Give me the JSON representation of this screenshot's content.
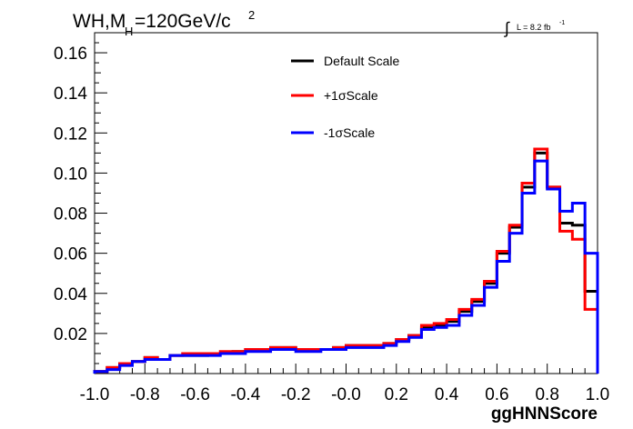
{
  "chart_data": {
    "type": "step",
    "title": {
      "main": "WH,M",
      "sub": "H",
      "tail": "=120GeV/c",
      "sup": "2"
    },
    "lumi": {
      "integral": "∫",
      "text": "L = 8.2 fb",
      "sup": "-1"
    },
    "xlabel": "ggHNNScore",
    "ylabel": "",
    "xlim": [
      -1.0,
      1.0
    ],
    "ylim": [
      0.0,
      0.17
    ],
    "x_ticks": [
      "-1.0",
      "-0.8",
      "-0.6",
      "-0.4",
      "-0.2",
      "-0.0",
      "0.2",
      "0.4",
      "0.6",
      "0.8",
      "1.0"
    ],
    "y_ticks": [
      "0.02",
      "0.04",
      "0.06",
      "0.08",
      "0.10",
      "0.12",
      "0.14",
      "0.16"
    ],
    "bin_edges_start": -1.0,
    "bin_width": 0.05,
    "series": [
      {
        "name": "Default Scale",
        "color": "#000000",
        "values": [
          0.001,
          0.003,
          0.005,
          0.006,
          0.008,
          0.007,
          0.009,
          0.009,
          0.009,
          0.01,
          0.01,
          0.011,
          0.012,
          0.012,
          0.013,
          0.013,
          0.012,
          0.012,
          0.012,
          0.013,
          0.014,
          0.014,
          0.014,
          0.015,
          0.017,
          0.019,
          0.023,
          0.024,
          0.026,
          0.031,
          0.036,
          0.045,
          0.06,
          0.073,
          0.093,
          0.11,
          0.093,
          0.075,
          0.074,
          0.041
        ]
      },
      {
        "name": "+1σScale",
        "color": "#ff0000",
        "values": [
          0.001,
          0.003,
          0.005,
          0.006,
          0.008,
          0.007,
          0.009,
          0.01,
          0.01,
          0.01,
          0.011,
          0.011,
          0.012,
          0.012,
          0.013,
          0.013,
          0.012,
          0.012,
          0.012,
          0.013,
          0.014,
          0.014,
          0.014,
          0.015,
          0.017,
          0.019,
          0.024,
          0.025,
          0.027,
          0.032,
          0.037,
          0.046,
          0.061,
          0.074,
          0.095,
          0.112,
          0.093,
          0.071,
          0.067,
          0.032
        ]
      },
      {
        "name": "-1σScale",
        "color": "#0000ff",
        "values": [
          0.001,
          0.002,
          0.004,
          0.006,
          0.007,
          0.007,
          0.009,
          0.009,
          0.009,
          0.009,
          0.01,
          0.01,
          0.011,
          0.011,
          0.012,
          0.012,
          0.011,
          0.011,
          0.012,
          0.012,
          0.013,
          0.013,
          0.013,
          0.014,
          0.016,
          0.018,
          0.022,
          0.023,
          0.024,
          0.029,
          0.034,
          0.043,
          0.056,
          0.07,
          0.09,
          0.106,
          0.092,
          0.081,
          0.085,
          0.06
        ]
      }
    ],
    "legend_position": "top-center",
    "grid": false
  }
}
